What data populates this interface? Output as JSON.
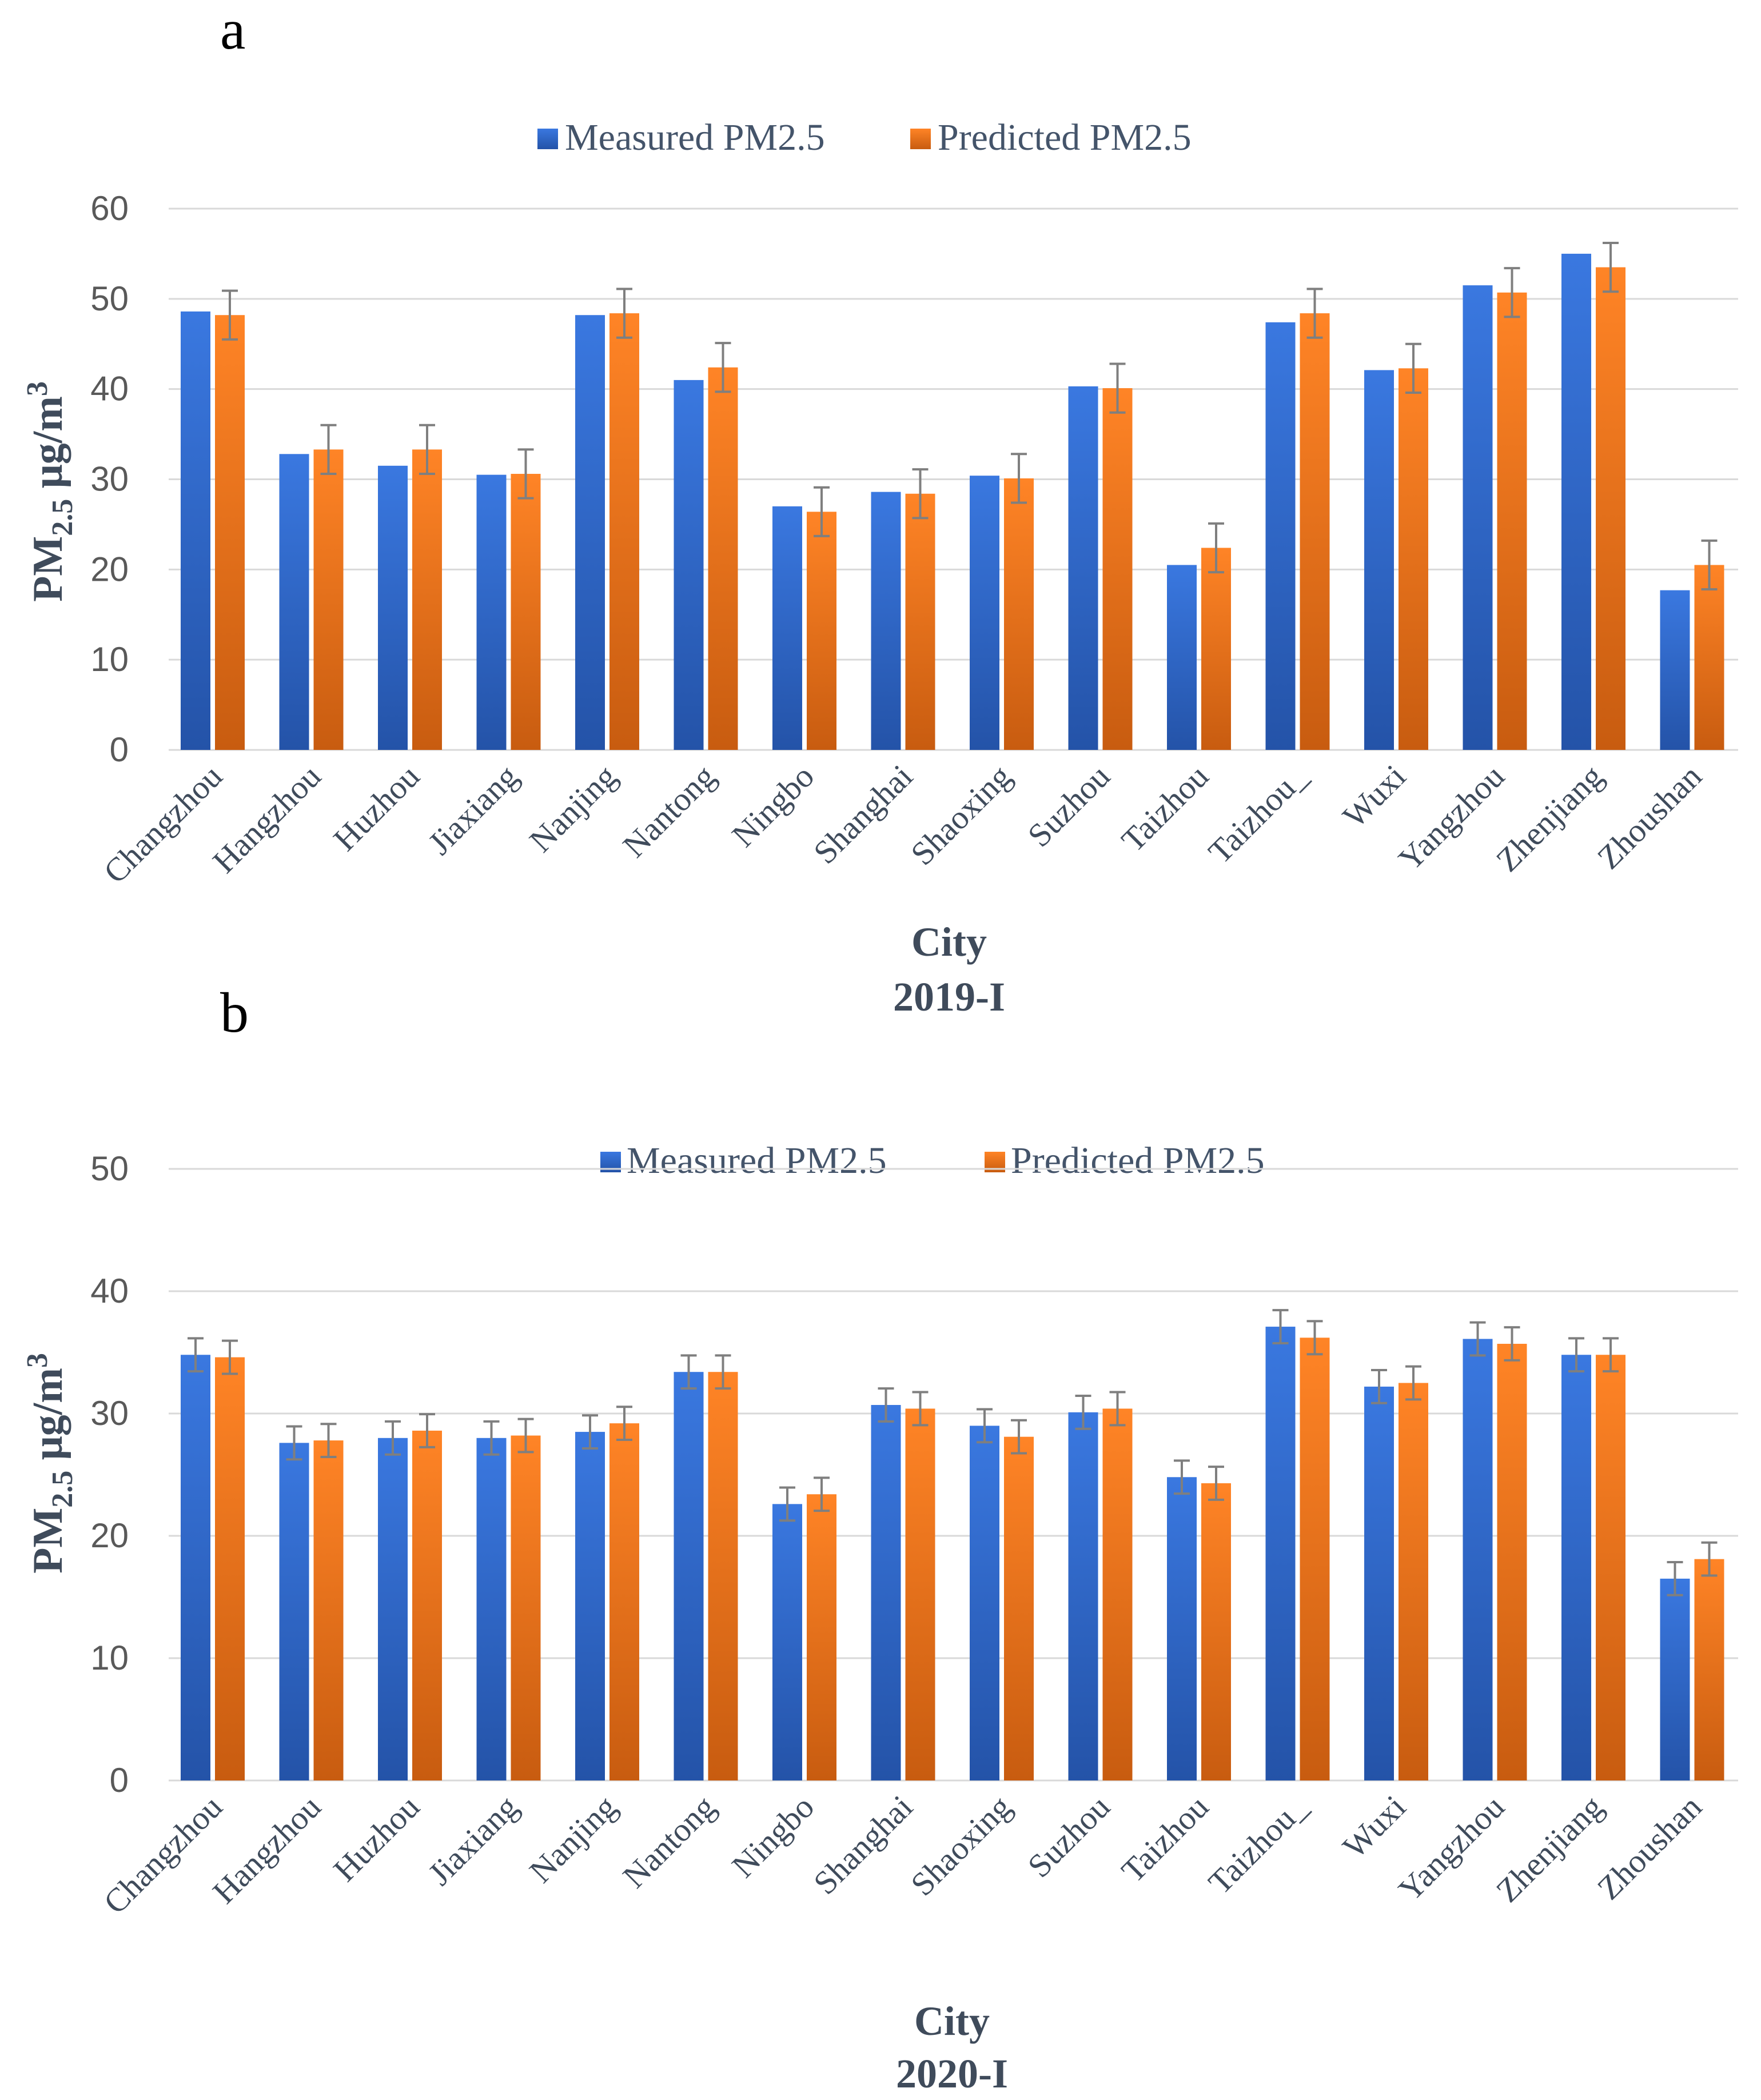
{
  "colors": {
    "measured": "#2e68d6",
    "predicted": "#f07a1c",
    "grid": "#d9d9d9",
    "error_bar": "#7f7f7f"
  },
  "chart_data": [
    {
      "type": "bar",
      "panel": "a",
      "title": "",
      "xlabel": "City",
      "subtitle": "2019-I",
      "ylabel": "PM2.5 μg/m3",
      "ylabel_main": "PM",
      "ylabel_sub": "2.5",
      "ylabel_unit": " μg/m",
      "ylabel_sup": "3",
      "ylim": [
        0,
        60
      ],
      "yticks": [
        0,
        10,
        20,
        30,
        40,
        50,
        60
      ],
      "legend_position": "top-center",
      "categories": [
        "Changzhou",
        "Hangzhou",
        "Huzhou",
        "Jiaxiang",
        "Nanjing",
        "Nantong",
        "Ningbo",
        "Shanghai",
        "Shaoxing",
        "Suzhou",
        "Taizhou",
        "Taizhou_",
        "Wuxi",
        "Yangzhou",
        "Zhenjiang",
        "Zhoushan"
      ],
      "series": [
        {
          "name": "Measured PM2.5",
          "values": [
            48.6,
            32.8,
            31.5,
            30.5,
            48.2,
            41.0,
            27.0,
            28.6,
            30.4,
            40.3,
            20.5,
            47.4,
            42.1,
            51.5,
            55.0,
            17.7
          ],
          "error": null
        },
        {
          "name": "Predicted PM2.5",
          "values": [
            48.2,
            33.3,
            33.3,
            30.6,
            48.4,
            42.4,
            26.4,
            28.4,
            30.1,
            40.1,
            22.4,
            48.4,
            42.3,
            50.7,
            53.5,
            20.5
          ],
          "error": 2.7
        }
      ]
    },
    {
      "type": "bar",
      "panel": "b",
      "title": "",
      "xlabel": "City",
      "subtitle": "2020-I",
      "ylabel": "PM2.5 μg/m3",
      "ylabel_main": "PM",
      "ylabel_sub": "2.5",
      "ylabel_unit": " μg/m",
      "ylabel_sup": "3",
      "ylim": [
        0,
        50
      ],
      "yticks": [
        0,
        10,
        20,
        30,
        40,
        50
      ],
      "legend_position": "top-center",
      "categories": [
        "Changzhou",
        "Hangzhou",
        "Huzhou",
        "Jiaxiang",
        "Nanjing",
        "Nantong",
        "Ningbo",
        "Shanghai",
        "Shaoxing",
        "Suzhou",
        "Taizhou",
        "Taizhou_",
        "Wuxi",
        "Yangzhou",
        "Zhenjiang",
        "Zhoushan"
      ],
      "series": [
        {
          "name": "Measured PM2.5",
          "values": [
            34.8,
            27.6,
            28.0,
            28.0,
            28.5,
            33.4,
            22.6,
            30.7,
            29.0,
            30.1,
            24.8,
            37.1,
            32.2,
            36.1,
            34.8,
            16.5
          ],
          "error": 1.35
        },
        {
          "name": "Predicted PM2.5",
          "values": [
            34.6,
            27.8,
            28.6,
            28.2,
            29.2,
            33.4,
            23.4,
            30.4,
            28.1,
            30.4,
            24.3,
            36.2,
            32.5,
            35.7,
            34.8,
            18.1
          ],
          "error": 1.35
        }
      ]
    }
  ]
}
